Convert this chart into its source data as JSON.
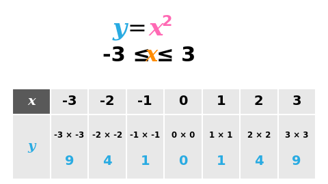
{
  "color_y_title": "#29ABE2",
  "color_x_title": "#FF69B4",
  "color_x_subtitle": "#FF8C00",
  "color_values": "#29ABE2",
  "color_header_bg": "#595959",
  "color_header_text": "#FFFFFF",
  "color_row_bg": "#E8E8E8",
  "bg_color": "#FFFFFF",
  "x_values": [
    "-3",
    "-2",
    "-1",
    "0",
    "1",
    "2",
    "3"
  ],
  "x_expressions": [
    "-3 × -3",
    "-2 × -2",
    "-1 × -1",
    "0 × 0",
    "1 × 1",
    "2 × 2",
    "3 × 3"
  ],
  "y_values": [
    "9",
    "4",
    "1",
    "0",
    "1",
    "4",
    "9"
  ]
}
